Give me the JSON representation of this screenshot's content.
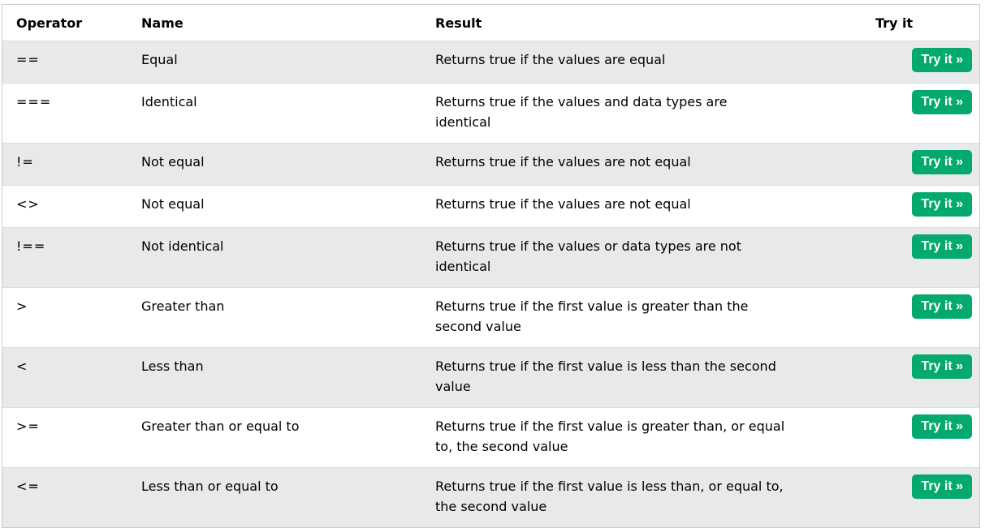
{
  "header": {
    "operator": "Operator",
    "name": "Name",
    "result": "Result",
    "try_it": "Try it"
  },
  "rows": [
    {
      "operator": "==",
      "name": "Equal",
      "result": "Returns true if the values are equal",
      "button": "Try it »"
    },
    {
      "operator": "===",
      "name": "Identical",
      "result": "Returns true if the values and data types are identical",
      "button": "Try it »"
    },
    {
      "operator": "!=",
      "name": "Not equal",
      "result": "Returns true if the values are not equal",
      "button": "Try it »"
    },
    {
      "operator": "<>",
      "name": "Not equal",
      "result": "Returns true if the values are not equal",
      "button": "Try it »"
    },
    {
      "operator": "!==",
      "name": "Not identical",
      "result": "Returns true if the values or data types are not identical",
      "button": "Try it »"
    },
    {
      "operator": ">",
      "name": "Greater than",
      "result": "Returns true if the first value is greater than the second value",
      "button": "Try it »"
    },
    {
      "operator": "<",
      "name": "Less than",
      "result": "Returns true if the first value is less than the second value",
      "button": "Try it »"
    },
    {
      "operator": ">=",
      "name": "Greater than or equal to",
      "result": "Returns true if the first value is greater than, or equal to, the second value",
      "button": "Try it »"
    },
    {
      "operator": "<=",
      "name": "Less than or equal to",
      "result": "Returns true if the first value is less than, or equal to, the second value",
      "button": "Try it »"
    }
  ],
  "colors": {
    "button_bg": "#04aa6d",
    "row_shaded": "#e7e9eb",
    "border": "#dddddd"
  }
}
